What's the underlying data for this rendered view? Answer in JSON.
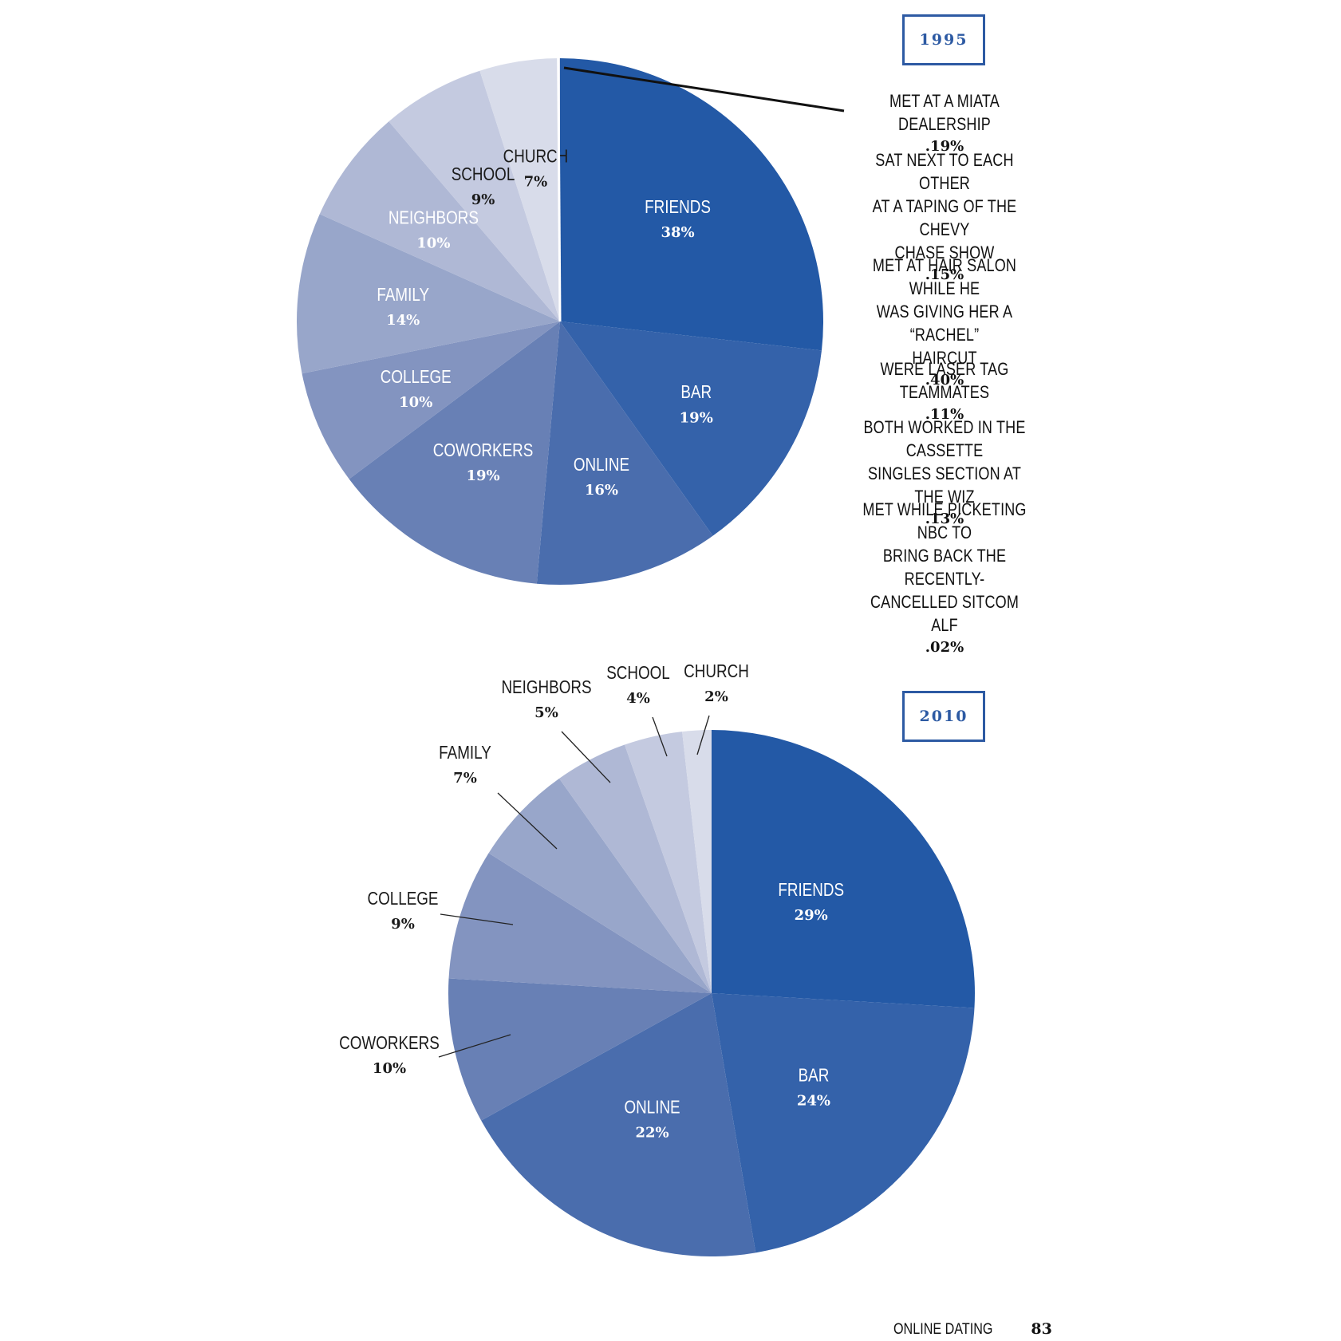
{
  "chart_data": [
    {
      "type": "pie",
      "title": "1995",
      "slices": [
        {
          "label": "FRIENDS",
          "value_label": "38%",
          "value": 38,
          "color": "#2359a6"
        },
        {
          "label": "BAR",
          "value_label": "19%",
          "value": 19,
          "color": "#3462aa"
        },
        {
          "label": "ONLINE",
          "value_label": "16%",
          "value": 16,
          "color": "#4a6dad"
        },
        {
          "label": "COWORKERS",
          "value_label": "19%",
          "value": 19,
          "color": "#6880b5"
        },
        {
          "label": "COLLEGE",
          "value_label": "10%",
          "value": 10,
          "color": "#8394c0"
        },
        {
          "label": "FAMILY",
          "value_label": "14%",
          "value": 14,
          "color": "#98a6ca"
        },
        {
          "label": "NEIGHBORS",
          "value_label": "10%",
          "value": 10,
          "color": "#afb8d5"
        },
        {
          "label": "SCHOOL",
          "value_label": "9%",
          "value": 9,
          "color": "#c4cae0"
        },
        {
          "label": "CHURCH",
          "value_label": "7%",
          "value": 7,
          "color": "#d8dcea"
        }
      ],
      "annotations": [
        {
          "text": "MET AT A MIATA DEALERSHIP",
          "value_label": ".19%",
          "value": 0.19
        },
        {
          "text": "SAT NEXT TO EACH OTHER\nAT A TAPING OF THE CHEVY\nCHASE SHOW",
          "value_label": ".15%",
          "value": 0.15
        },
        {
          "text": "MET AT HAIR SALON WHILE HE\nWAS GIVING HER A “RACHEL”\nHAIRCUT",
          "value_label": ".40%",
          "value": 0.4
        },
        {
          "text": "WERE LASER TAG TEAMMATES",
          "value_label": ".11%",
          "value": 0.11
        },
        {
          "text": "BOTH WORKED IN THE CASSETTE\nSINGLES SECTION AT THE WIZ",
          "value_label": ".13%",
          "value": 0.13
        },
        {
          "text": "MET WHILE PICKETING NBC TO\nBRING BACK THE RECENTLY-\nCANCELLED SITCOM ALF",
          "value_label": ".02%",
          "value": 0.02
        }
      ]
    },
    {
      "type": "pie",
      "title": "2010",
      "slices": [
        {
          "label": "FRIENDS",
          "value_label": "29%",
          "value": 29,
          "color": "#2359a6"
        },
        {
          "label": "BAR",
          "value_label": "24%",
          "value": 24,
          "color": "#3462aa"
        },
        {
          "label": "ONLINE",
          "value_label": "22%",
          "value": 22,
          "color": "#4a6dad"
        },
        {
          "label": "COWORKERS",
          "value_label": "10%",
          "value": 10,
          "color": "#6880b5"
        },
        {
          "label": "COLLEGE",
          "value_label": "9%",
          "value": 9,
          "color": "#8394c0"
        },
        {
          "label": "FAMILY",
          "value_label": "7%",
          "value": 7,
          "color": "#98a6ca"
        },
        {
          "label": "NEIGHBORS",
          "value_label": "5%",
          "value": 5,
          "color": "#afb8d5"
        },
        {
          "label": "SCHOOL",
          "value_label": "4%",
          "value": 4,
          "color": "#c4cae0"
        },
        {
          "label": "CHURCH",
          "value_label": "2%",
          "value": 2,
          "color": "#d8dcea"
        }
      ]
    }
  ],
  "footer": {
    "section": "ONLINE DATING",
    "page": "83"
  }
}
